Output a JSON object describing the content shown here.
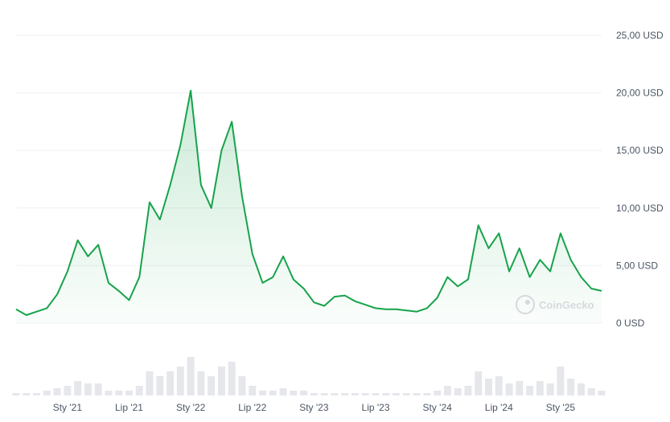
{
  "watermark": {
    "text": "CoinGecko",
    "icon": "coingecko-logo-icon"
  },
  "colors": {
    "line": "#16a34a",
    "area_top": "#16a34a",
    "volume": "#e5e7eb",
    "grid": "#eef0f3",
    "text": "#4b5563"
  },
  "chart_data": {
    "type": "area",
    "title": "",
    "xlabel": "",
    "ylabel": "",
    "ylim": [
      0,
      25
    ],
    "grid": true,
    "legend": "none",
    "y_ticks": [
      "0 USD",
      "5,00 USD",
      "10,00 USD",
      "15,00 USD",
      "20,00 USD",
      "25,00 USD"
    ],
    "y_tick_values": [
      0,
      5,
      10,
      15,
      20,
      25
    ],
    "x_ticks": [
      "Sty '21",
      "Lip '21",
      "Sty '22",
      "Lip '22",
      "Sty '23",
      "Lip '23",
      "Sty '24",
      "Lip '24",
      "Sty '25"
    ],
    "x_tick_values": [
      "2021-01",
      "2021-07",
      "2022-01",
      "2022-07",
      "2023-01",
      "2023-07",
      "2024-01",
      "2024-07",
      "2025-01"
    ],
    "x_range": [
      "2020-08",
      "2025-05"
    ],
    "series": [
      {
        "values_x": [
          "2020-08",
          "2020-09",
          "2020-10",
          "2020-11",
          "2020-12",
          "2021-01",
          "2021-02",
          "2021-03",
          "2021-04",
          "2021-05",
          "2021-06",
          "2021-07",
          "2021-08",
          "2021-09",
          "2021-10",
          "2021-11",
          "2021-12",
          "2022-01",
          "2022-02",
          "2022-03",
          "2022-04",
          "2022-05",
          "2022-06",
          "2022-07",
          "2022-08",
          "2022-09",
          "2022-10",
          "2022-11",
          "2022-12",
          "2023-01",
          "2023-02",
          "2023-03",
          "2023-04",
          "2023-05",
          "2023-06",
          "2023-07",
          "2023-08",
          "2023-09",
          "2023-10",
          "2023-11",
          "2023-12",
          "2024-01",
          "2024-02",
          "2024-03",
          "2024-04",
          "2024-05",
          "2024-06",
          "2024-07",
          "2024-08",
          "2024-09",
          "2024-10",
          "2024-11",
          "2024-12",
          "2025-01",
          "2025-02",
          "2025-03",
          "2025-04",
          "2025-05"
        ],
        "values": [
          1.2,
          0.7,
          1.0,
          1.3,
          2.5,
          4.5,
          7.2,
          5.8,
          6.8,
          3.5,
          2.8,
          2.0,
          4.0,
          10.5,
          9.0,
          12.0,
          15.5,
          20.2,
          12.0,
          10.0,
          15.0,
          17.5,
          11.0,
          6.0,
          3.5,
          4.0,
          5.8,
          3.8,
          3.0,
          1.8,
          1.5,
          2.3,
          2.4,
          1.9,
          1.6,
          1.3,
          1.2,
          1.2,
          1.1,
          1.0,
          1.3,
          2.2,
          4.0,
          3.2,
          3.8,
          8.5,
          6.5,
          7.8,
          4.5,
          6.5,
          4.0,
          5.5,
          4.5,
          7.8,
          5.5,
          4.0,
          3.0,
          2.8
        ]
      }
    ],
    "volume": [
      0.05,
      0.05,
      0.05,
      0.1,
      0.15,
      0.2,
      0.3,
      0.25,
      0.25,
      0.1,
      0.1,
      0.1,
      0.2,
      0.5,
      0.4,
      0.5,
      0.6,
      0.8,
      0.5,
      0.4,
      0.6,
      0.7,
      0.4,
      0.2,
      0.1,
      0.1,
      0.15,
      0.1,
      0.1,
      0.05,
      0.05,
      0.05,
      0.05,
      0.05,
      0.05,
      0.05,
      0.05,
      0.05,
      0.05,
      0.05,
      0.05,
      0.1,
      0.2,
      0.15,
      0.2,
      0.5,
      0.35,
      0.4,
      0.25,
      0.3,
      0.2,
      0.3,
      0.25,
      0.6,
      0.35,
      0.25,
      0.15,
      0.1
    ]
  }
}
